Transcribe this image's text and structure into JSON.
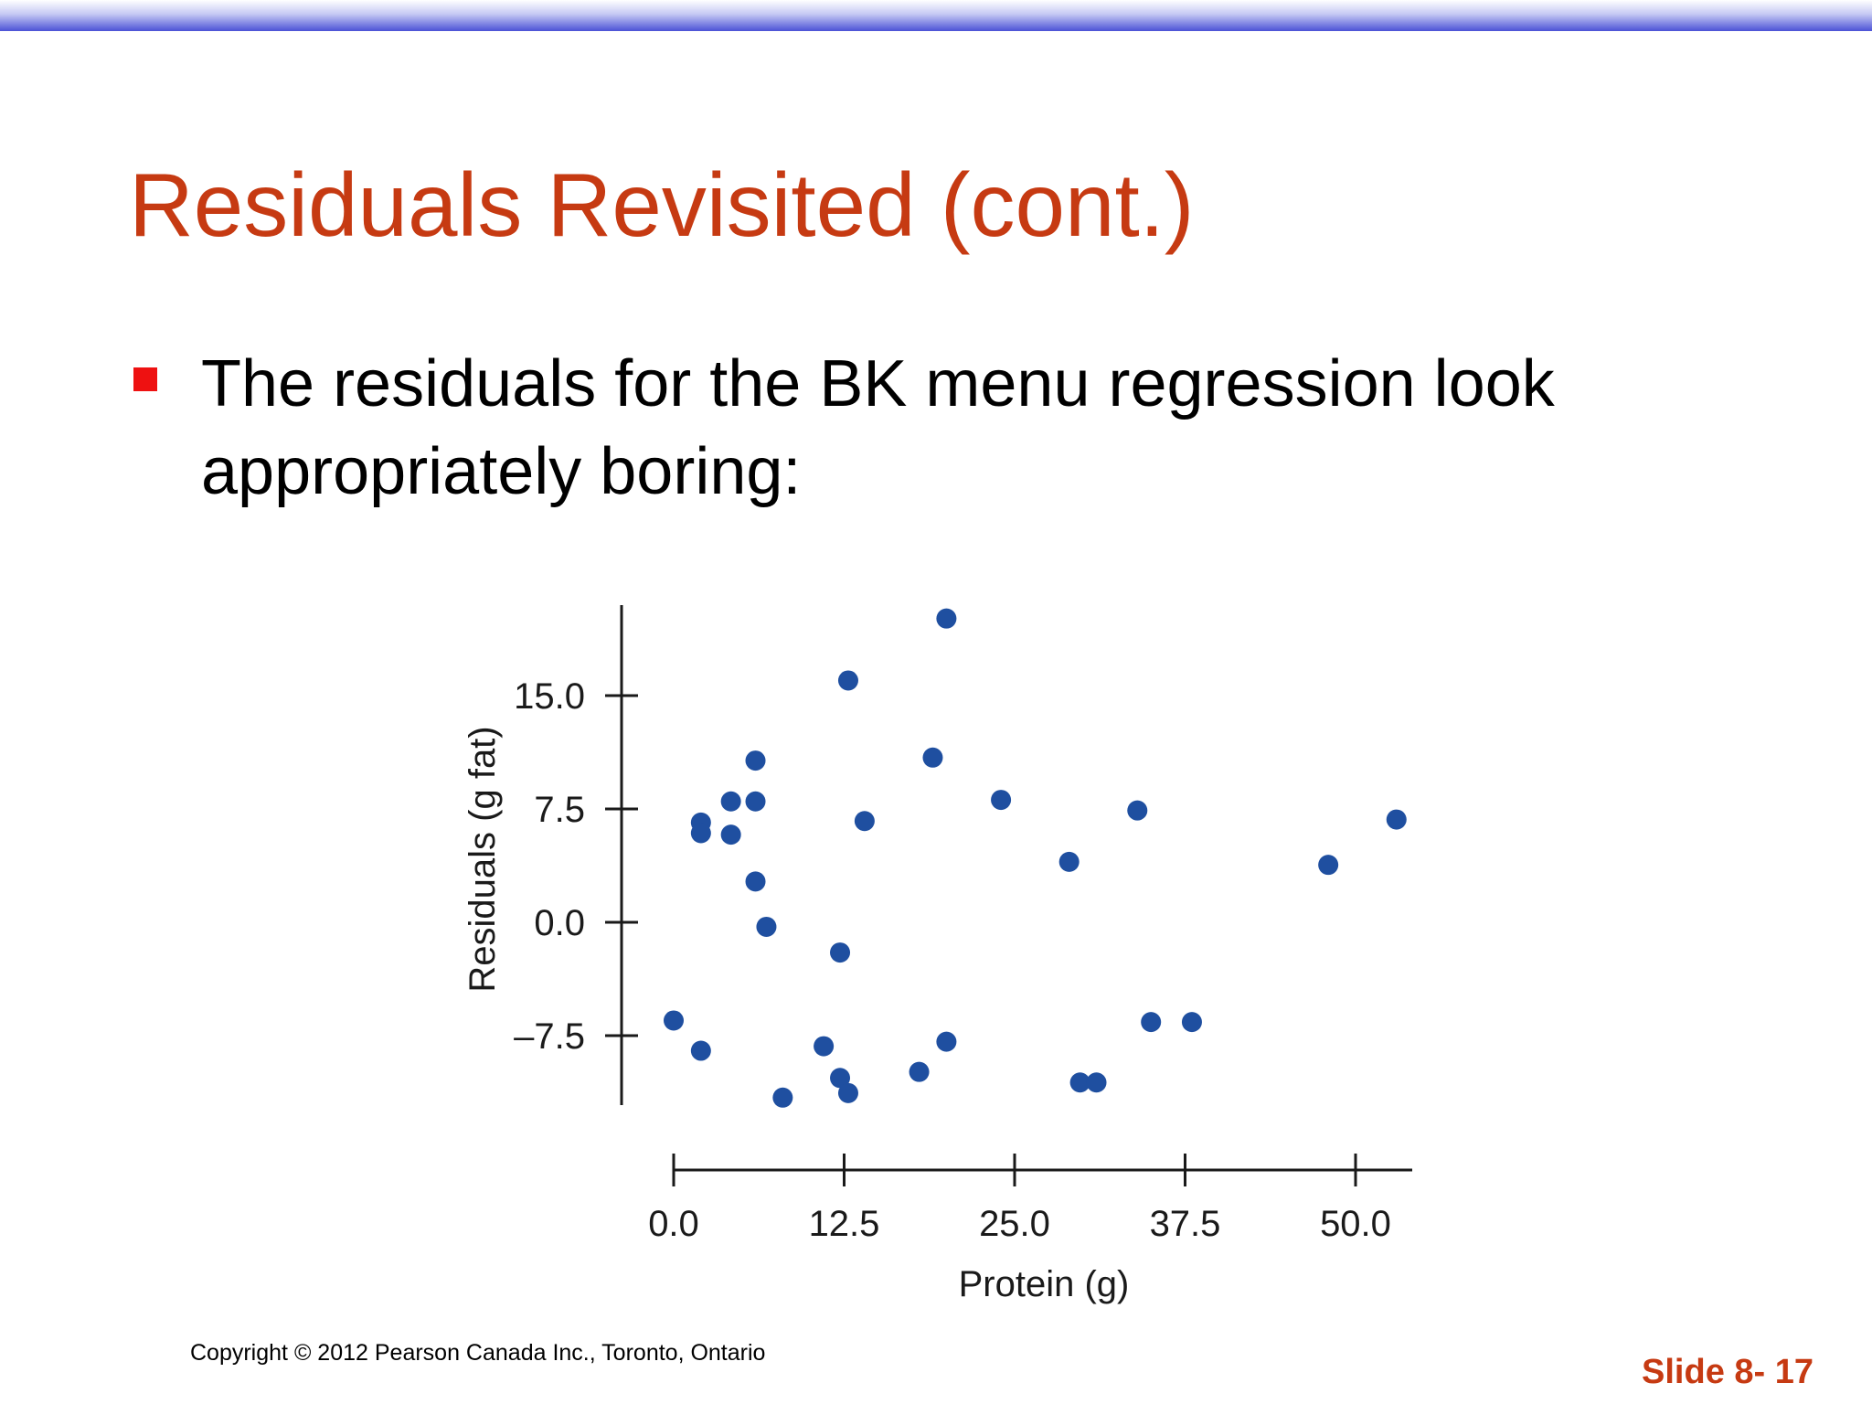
{
  "slide": {
    "title": "Residuals Revisited (cont.)",
    "bullet": "The residuals for the BK menu regression look appropriately boring:",
    "copyright": "Copyright © 2012 Pearson Canada Inc., Toronto, Ontario",
    "slide_number": "Slide 8- 17"
  },
  "colors": {
    "title": "#c63a12",
    "bullet": "#ee1111",
    "points": "#1f4fa0",
    "top_bar": "#4b52d6"
  },
  "chart_data": {
    "type": "scatter",
    "xlabel": "Protein (g)",
    "ylabel": "Residuals (g fat)",
    "xlim": [
      -1,
      54.5
    ],
    "ylim": [
      -12,
      21
    ],
    "x_ticks": [
      0.0,
      12.5,
      25.0,
      37.5,
      50.0
    ],
    "x_tick_labels": [
      "0.0",
      "12.5",
      "25.0",
      "37.5",
      "50.0"
    ],
    "y_ticks": [
      -7.5,
      0.0,
      7.5,
      15.0
    ],
    "y_tick_labels": [
      "–7.5",
      "0.0",
      "7.5",
      "15.0"
    ],
    "grid": false,
    "points": [
      {
        "x": 0,
        "y": -6.5
      },
      {
        "x": 2,
        "y": 6.6
      },
      {
        "x": 2,
        "y": 5.9
      },
      {
        "x": 2,
        "y": -8.5
      },
      {
        "x": 4.2,
        "y": 8.0
      },
      {
        "x": 4.2,
        "y": 5.8
      },
      {
        "x": 6,
        "y": 10.7
      },
      {
        "x": 6,
        "y": 8.0
      },
      {
        "x": 6,
        "y": 2.7
      },
      {
        "x": 6.8,
        "y": -0.3
      },
      {
        "x": 8,
        "y": -11.6
      },
      {
        "x": 11,
        "y": -8.2
      },
      {
        "x": 12.2,
        "y": -2.0
      },
      {
        "x": 12.2,
        "y": -10.3
      },
      {
        "x": 12.8,
        "y": 16.0
      },
      {
        "x": 12.8,
        "y": -11.3
      },
      {
        "x": 14,
        "y": 6.7
      },
      {
        "x": 18,
        "y": -9.9
      },
      {
        "x": 19,
        "y": 10.9
      },
      {
        "x": 20,
        "y": 20.1
      },
      {
        "x": 20,
        "y": -7.9
      },
      {
        "x": 24,
        "y": 8.1
      },
      {
        "x": 29,
        "y": 4.0
      },
      {
        "x": 29.8,
        "y": -10.6
      },
      {
        "x": 31,
        "y": -10.6
      },
      {
        "x": 34,
        "y": 7.4
      },
      {
        "x": 35,
        "y": -6.6
      },
      {
        "x": 38,
        "y": -6.6
      },
      {
        "x": 48,
        "y": 3.8
      },
      {
        "x": 53,
        "y": 6.8
      }
    ]
  }
}
